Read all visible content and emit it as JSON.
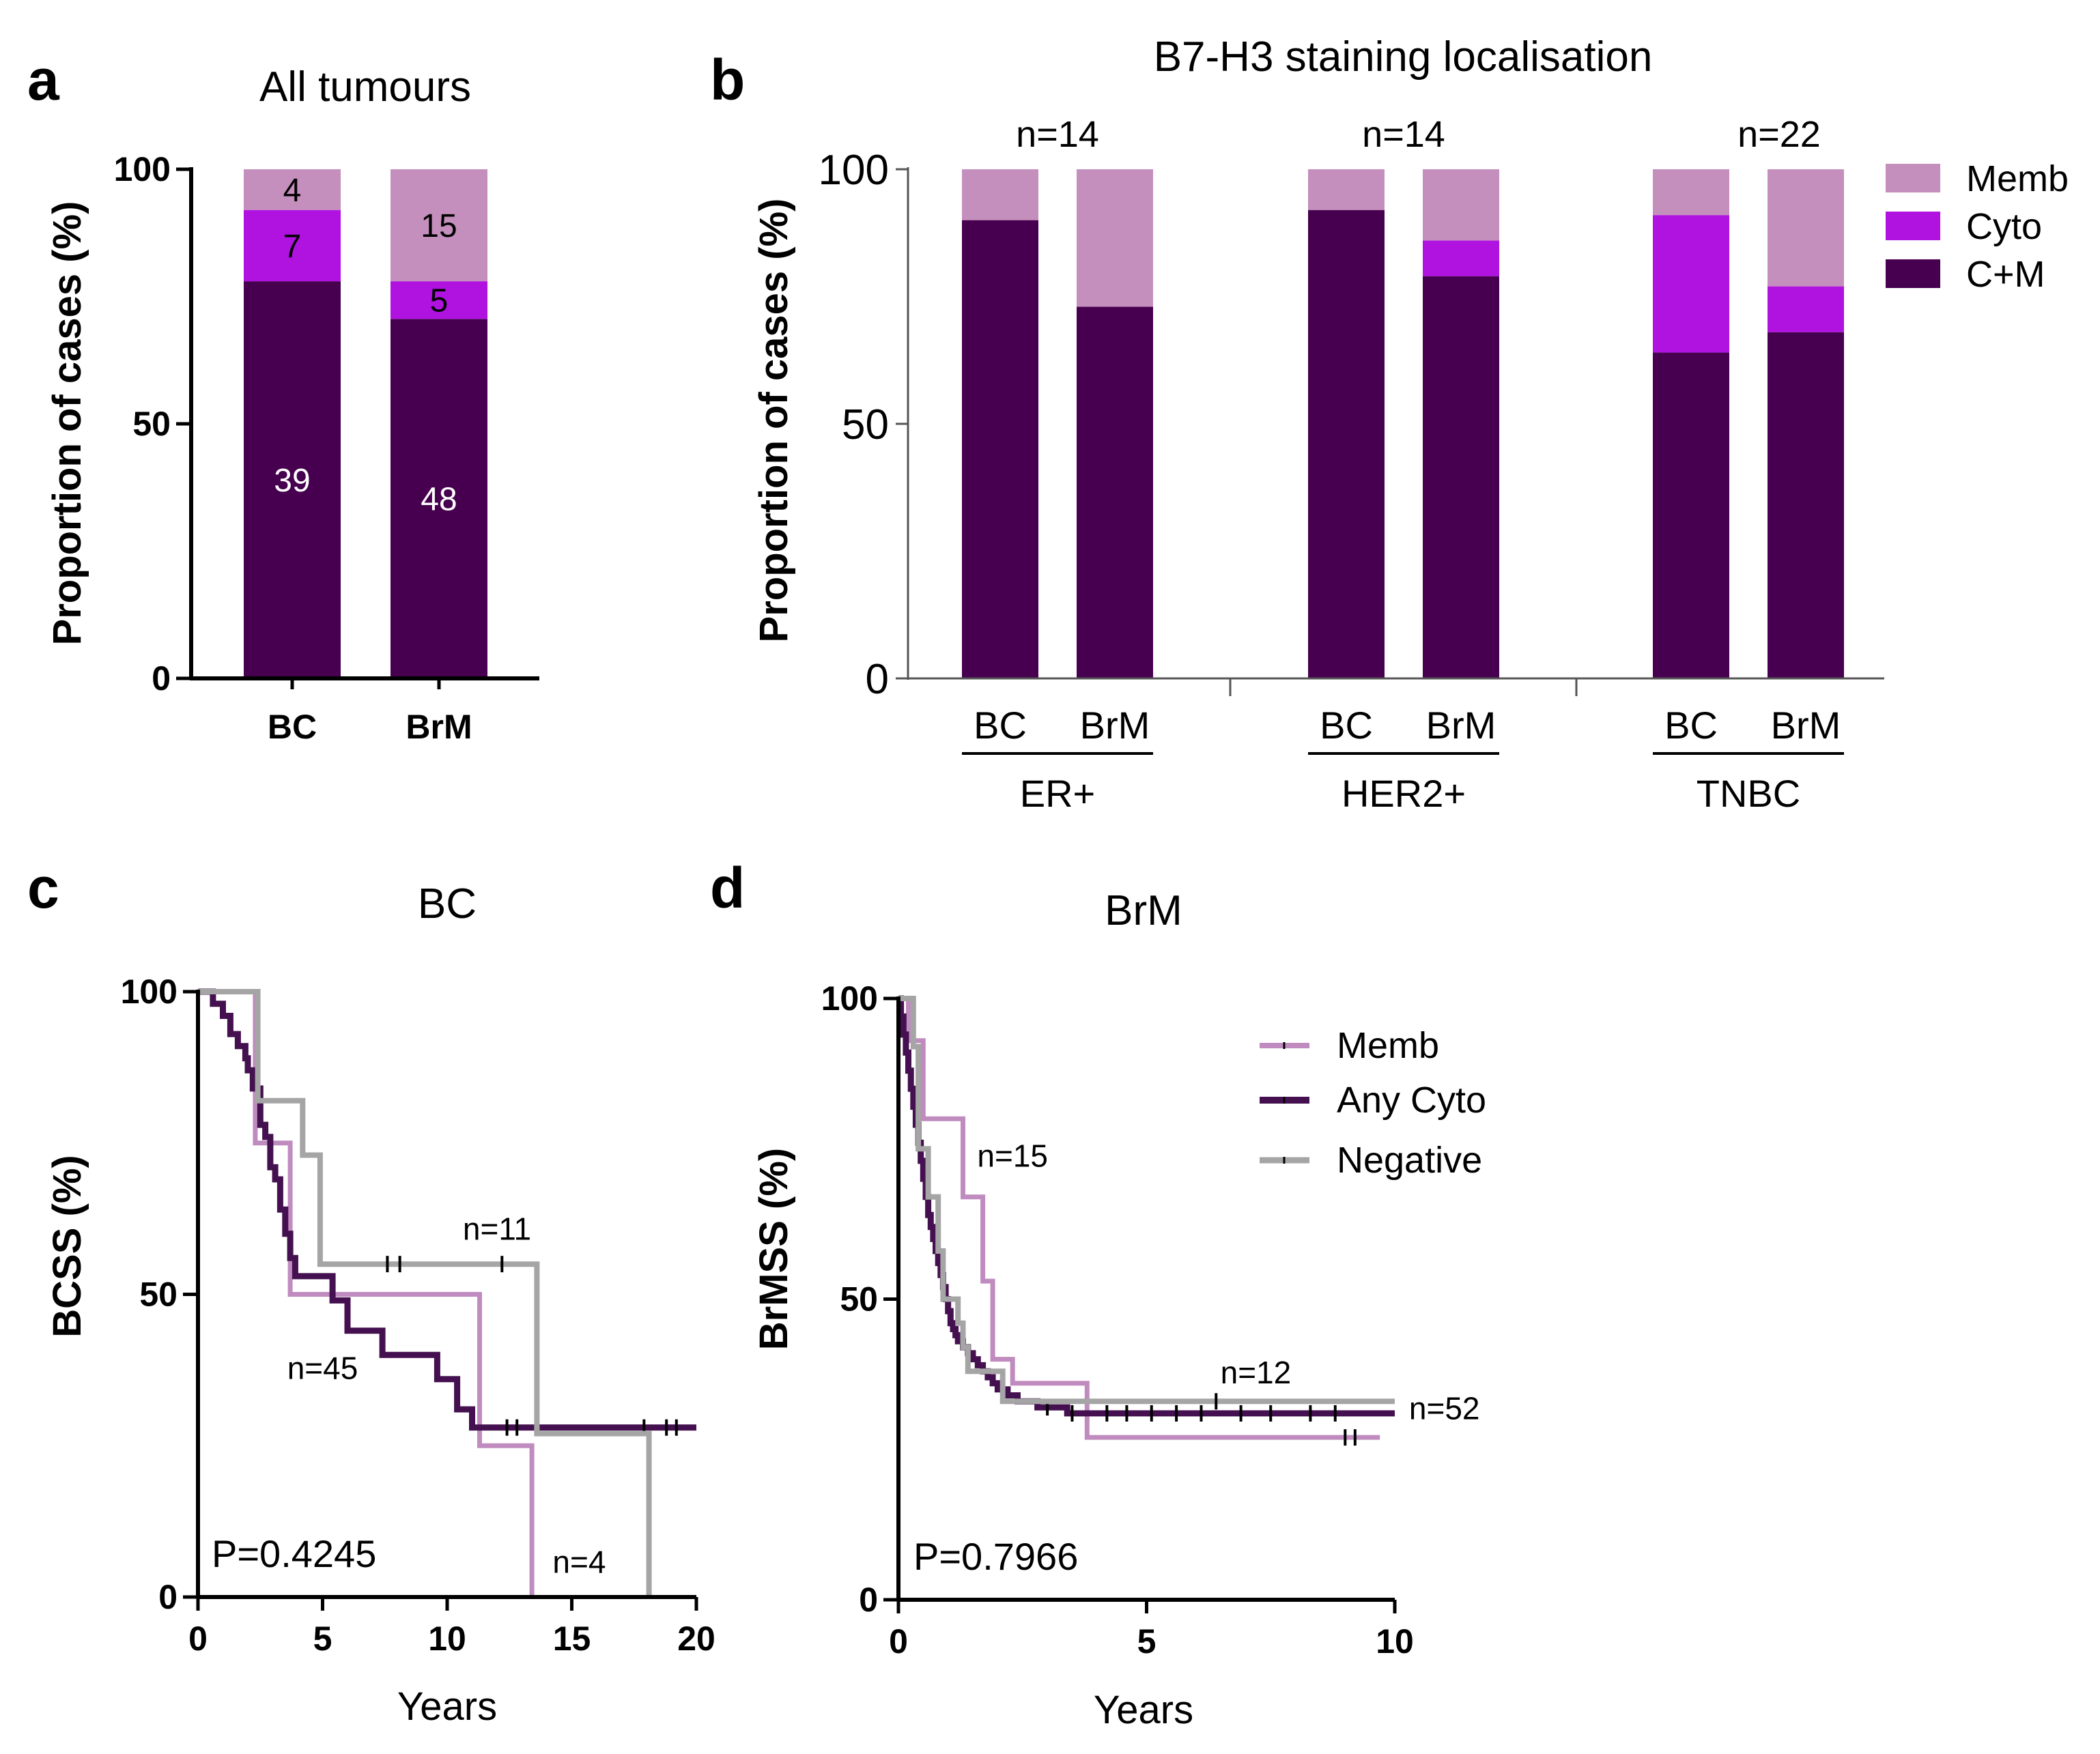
{
  "colors": {
    "memb": "#c58fbd",
    "cyto": "#b012e0",
    "cm": "#46004f",
    "memb_km": "#c08bbf",
    "any_cyto_km": "#44104f",
    "negative_km": "#a5a5a5",
    "axis": "#000000",
    "inner_label_light": "#ffffff",
    "inner_label_dark": "#000000"
  },
  "chart_data": [
    {
      "panel": "a",
      "type": "bar",
      "stacked": true,
      "title": "All tumours",
      "xlabel": "",
      "ylabel": "Proportion of cases (%)",
      "ylim": [
        0,
        100
      ],
      "yticks": [
        0,
        50,
        100
      ],
      "categories": [
        "BC",
        "BrM"
      ],
      "series": [
        {
          "name": "C+M",
          "values": [
            78,
            70.6
          ],
          "labels": [
            "39",
            "48"
          ]
        },
        {
          "name": "Cyto",
          "values": [
            14,
            7.4
          ],
          "labels": [
            "7",
            "5"
          ]
        },
        {
          "name": "Memb",
          "values": [
            8,
            22
          ],
          "labels": [
            "4",
            "15"
          ]
        }
      ]
    },
    {
      "panel": "b",
      "type": "bar",
      "stacked": true,
      "title": "B7-H3 staining localisation",
      "xlabel": "",
      "ylabel": "Proportion of cases (%)",
      "ylim": [
        0,
        100
      ],
      "yticks": [
        0,
        50,
        100
      ],
      "groups": [
        {
          "name": "ER+",
          "n": "n=14",
          "categories": [
            "BC",
            "BrM"
          ]
        },
        {
          "name": "HER2+",
          "n": "n=14",
          "categories": [
            "BC",
            "BrM"
          ]
        },
        {
          "name": "TNBC",
          "n": "n=22",
          "categories": [
            "BC",
            "BrM"
          ]
        }
      ],
      "series": [
        {
          "name": "C+M",
          "values": [
            90,
            73,
            92,
            79,
            64,
            68
          ]
        },
        {
          "name": "Cyto",
          "values": [
            0,
            0,
            0,
            7,
            27,
            9
          ]
        },
        {
          "name": "Memb",
          "values": [
            10,
            27,
            8,
            14,
            9,
            23
          ]
        }
      ],
      "legend": [
        "Memb",
        "Cyto",
        "C+M"
      ],
      "legend_position": "right"
    },
    {
      "panel": "c",
      "type": "line",
      "step": true,
      "title": "BC",
      "xlabel": "Years",
      "ylabel": "BCSS (%)",
      "xlim": [
        0,
        20
      ],
      "ylim": [
        0,
        100
      ],
      "xticks": [
        0,
        5,
        10,
        15,
        20
      ],
      "yticks": [
        0,
        50,
        100
      ],
      "p_value": "P=0.4245",
      "series": [
        {
          "name": "Memb",
          "n_label": "n=4",
          "x": [
            0,
            2.3,
            2.3,
            3.7,
            3.7,
            11.3,
            11.3,
            13.4,
            13.4
          ],
          "y": [
            100,
            100,
            75,
            75,
            50,
            50,
            25,
            25,
            0
          ],
          "censor_x": []
        },
        {
          "name": "Any Cyto",
          "n_label": "n=45",
          "x": [
            0,
            0.6,
            0.6,
            1.0,
            1.0,
            1.3,
            1.3,
            1.6,
            1.6,
            1.9,
            1.9,
            2.0,
            2.0,
            2.2,
            2.2,
            2.5,
            2.5,
            2.7,
            2.7,
            2.9,
            2.9,
            3.1,
            3.1,
            3.3,
            3.3,
            3.5,
            3.5,
            3.7,
            3.7,
            3.9,
            3.9,
            4.1,
            4.1,
            5.4,
            5.4,
            6.0,
            6.0,
            7.4,
            7.4,
            9.6,
            9.6,
            10.4,
            10.4,
            11.0,
            11.0,
            20.0
          ],
          "y": [
            100,
            100,
            98,
            98,
            96,
            96,
            93,
            93,
            91,
            91,
            89,
            89,
            87,
            87,
            84,
            84,
            78,
            78,
            76,
            76,
            71,
            71,
            69,
            69,
            64,
            64,
            60,
            60,
            56,
            56,
            53,
            53,
            53,
            53,
            49,
            49,
            44,
            44,
            40,
            40,
            36,
            36,
            31,
            31,
            28,
            28
          ],
          "censor_x": [
            12.4,
            12.8,
            17.9,
            18.8,
            19.2
          ]
        },
        {
          "name": "Negative",
          "n_label": "n=11",
          "x": [
            0,
            2.4,
            2.4,
            4.2,
            4.2,
            4.9,
            4.9,
            13.6,
            13.6,
            18.1,
            18.1
          ],
          "y": [
            100,
            100,
            82,
            82,
            73,
            73,
            55,
            55,
            27,
            27,
            0
          ],
          "censor_x": [
            7.6,
            8.1,
            12.2
          ]
        }
      ]
    },
    {
      "panel": "d",
      "type": "line",
      "step": true,
      "title": "BrM",
      "xlabel": "Years",
      "ylabel": "BrMSS (%)",
      "xlim": [
        0,
        10
      ],
      "ylim": [
        0,
        100
      ],
      "xticks": [
        0,
        5,
        10
      ],
      "yticks": [
        0,
        50,
        100
      ],
      "p_value": "P=0.7966",
      "legend": [
        "Memb",
        "Any Cyto",
        "Negative"
      ],
      "legend_position": "top-right",
      "series": [
        {
          "name": "Memb",
          "n_label": "n=15",
          "x": [
            0,
            0.2,
            0.2,
            0.5,
            0.5,
            1.3,
            1.3,
            1.7,
            1.7,
            1.9,
            1.9,
            2.3,
            2.3,
            3.8,
            3.8,
            9.7
          ],
          "y": [
            100,
            100,
            93,
            93,
            80,
            80,
            67,
            67,
            53,
            53,
            40,
            40,
            36,
            36,
            27,
            27
          ],
          "censor_x": [
            9.0,
            9.2
          ]
        },
        {
          "name": "Any Cyto",
          "n_label": "n=52",
          "x": [
            0,
            0.05,
            0.05,
            0.1,
            0.1,
            0.15,
            0.15,
            0.2,
            0.2,
            0.25,
            0.25,
            0.3,
            0.3,
            0.35,
            0.35,
            0.4,
            0.4,
            0.45,
            0.45,
            0.5,
            0.5,
            0.55,
            0.55,
            0.6,
            0.6,
            0.65,
            0.65,
            0.7,
            0.7,
            0.75,
            0.75,
            0.8,
            0.8,
            0.85,
            0.85,
            0.9,
            0.9,
            0.95,
            0.95,
            1.0,
            1.0,
            1.05,
            1.05,
            1.1,
            1.1,
            1.15,
            1.15,
            1.2,
            1.2,
            1.3,
            1.3,
            1.4,
            1.4,
            1.5,
            1.5,
            1.6,
            1.6,
            1.7,
            1.7,
            1.8,
            1.8,
            1.9,
            1.9,
            2.0,
            2.0,
            2.2,
            2.2,
            2.4,
            2.4,
            2.6,
            2.6,
            2.8,
            2.8,
            3.4,
            3.4,
            10.0
          ],
          "y": [
            100,
            100,
            97,
            97,
            94,
            94,
            91,
            91,
            88,
            88,
            85,
            85,
            82,
            82,
            79,
            79,
            76,
            76,
            73,
            73,
            70,
            70,
            67,
            67,
            64,
            64,
            62,
            62,
            60,
            60,
            58,
            58,
            56,
            56,
            54,
            54,
            52,
            52,
            50,
            50,
            48,
            48,
            46,
            46,
            45,
            45,
            44,
            44,
            43,
            43,
            42,
            42,
            41,
            41,
            40,
            40,
            39,
            39,
            38,
            38,
            37,
            37,
            36,
            36,
            35,
            35,
            34,
            34,
            33,
            33,
            33,
            33,
            32,
            32,
            31,
            31
          ],
          "censor_x": [
            3.0,
            3.5,
            4.2,
            4.6,
            5.1,
            5.6,
            6.1,
            6.9,
            7.5,
            8.3,
            8.8
          ]
        },
        {
          "name": "Negative",
          "n_label": "n=12",
          "x": [
            0,
            0.3,
            0.3,
            0.4,
            0.4,
            0.6,
            0.6,
            0.8,
            0.8,
            0.9,
            0.9,
            1.2,
            1.2,
            1.3,
            1.3,
            1.4,
            1.4,
            2.1,
            2.1,
            2.4,
            2.4,
            10.0
          ],
          "y": [
            100,
            100,
            92,
            92,
            75,
            75,
            67,
            67,
            58,
            58,
            50,
            50,
            46,
            46,
            42,
            42,
            38,
            38,
            33,
            33,
            33,
            33
          ],
          "censor_x": [
            6.4
          ]
        }
      ]
    }
  ]
}
